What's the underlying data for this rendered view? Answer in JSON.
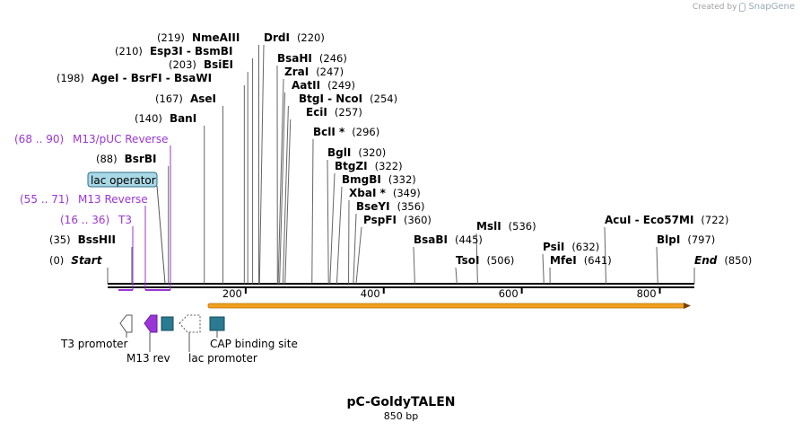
{
  "credit": {
    "prefix": "Created by",
    "brand": "SnapGene",
    "logo_icon": "snapgene-logo-icon"
  },
  "map": {
    "title": "pC-GoldyTALEN",
    "length_label": "850 bp",
    "total_bp": 850,
    "ticks": [
      200,
      400,
      600,
      800
    ],
    "orf": {
      "start": 150,
      "end": 850,
      "color": "#f0a020"
    }
  },
  "sites": [
    {
      "pos_label": "(0)",
      "name": "Start",
      "bp": 0,
      "italic": true
    },
    {
      "pos_label": "(35)",
      "name": "BssHII",
      "bp": 35
    },
    {
      "pos_label": "(88)",
      "name": "BsrBI",
      "bp": 88
    },
    {
      "pos_label": "(140)",
      "name": "BanI",
      "bp": 140
    },
    {
      "pos_label": "(167)",
      "name": "AseI",
      "bp": 167
    },
    {
      "pos_label": "(198)",
      "name": "AgeI  - BsrFI  - BsaWI",
      "bp": 198
    },
    {
      "pos_label": "(203)",
      "name": "BsiEI",
      "bp": 203
    },
    {
      "pos_label": "(210)",
      "name": "Esp3I  - BsmBI",
      "bp": 210
    },
    {
      "pos_label": "(219)",
      "name": "NmeAIII",
      "bp": 219
    },
    {
      "pos_label": "(220)",
      "name": "DrdI",
      "bp": 220
    },
    {
      "pos_label": "(246)",
      "name": "BsaHI",
      "bp": 246
    },
    {
      "pos_label": "(247)",
      "name": "ZraI",
      "bp": 247
    },
    {
      "pos_label": "(249)",
      "name": "AatII",
      "bp": 249
    },
    {
      "pos_label": "(254)",
      "name": "BtgI  - NcoI",
      "bp": 254
    },
    {
      "pos_label": "(257)",
      "name": "EciI",
      "bp": 257
    },
    {
      "pos_label": "(296)",
      "name": "BclI *",
      "bp": 296
    },
    {
      "pos_label": "(320)",
      "name": "BglI",
      "bp": 320
    },
    {
      "pos_label": "(322)",
      "name": "BtgZI",
      "bp": 322
    },
    {
      "pos_label": "(332)",
      "name": "BmgBI",
      "bp": 332
    },
    {
      "pos_label": "(349)",
      "name": "XbaI *",
      "bp": 349
    },
    {
      "pos_label": "(356)",
      "name": "BseYI",
      "bp": 356
    },
    {
      "pos_label": "(360)",
      "name": "PspFI",
      "bp": 360
    },
    {
      "pos_label": "(445)",
      "name": "BsaBI",
      "bp": 445
    },
    {
      "pos_label": "(506)",
      "name": "TsoI",
      "bp": 506
    },
    {
      "pos_label": "(536)",
      "name": "MslI",
      "bp": 536
    },
    {
      "pos_label": "(632)",
      "name": "PsiI",
      "bp": 632
    },
    {
      "pos_label": "(641)",
      "name": "MfeI",
      "bp": 641
    },
    {
      "pos_label": "(722)",
      "name": "AcuI  - Eco57MI",
      "bp": 722
    },
    {
      "pos_label": "(797)",
      "name": "BlpI",
      "bp": 797
    },
    {
      "pos_label": "(850)",
      "name": "End",
      "bp": 850,
      "italic": true
    }
  ],
  "primers": [
    {
      "range": "(68 .. 90)",
      "name": "M13/pUC Reverse",
      "start": 68,
      "end": 90
    },
    {
      "range": "(55 .. 71)",
      "name": "M13 Reverse",
      "start": 55,
      "end": 71
    },
    {
      "range": "(16 .. 36)",
      "name": "T3",
      "start": 16,
      "end": 36
    }
  ],
  "lac_operator": {
    "name": "lac operator"
  },
  "features": [
    {
      "name": "T3 promoter"
    },
    {
      "name": "M13 rev"
    },
    {
      "name": "lac promoter"
    },
    {
      "name": "CAP binding site"
    }
  ],
  "colors": {
    "primer": "#9a36d6",
    "operator_fill": "#a9d8e6",
    "feature_teal": "#2a7b92",
    "orf": "#f0a020"
  }
}
